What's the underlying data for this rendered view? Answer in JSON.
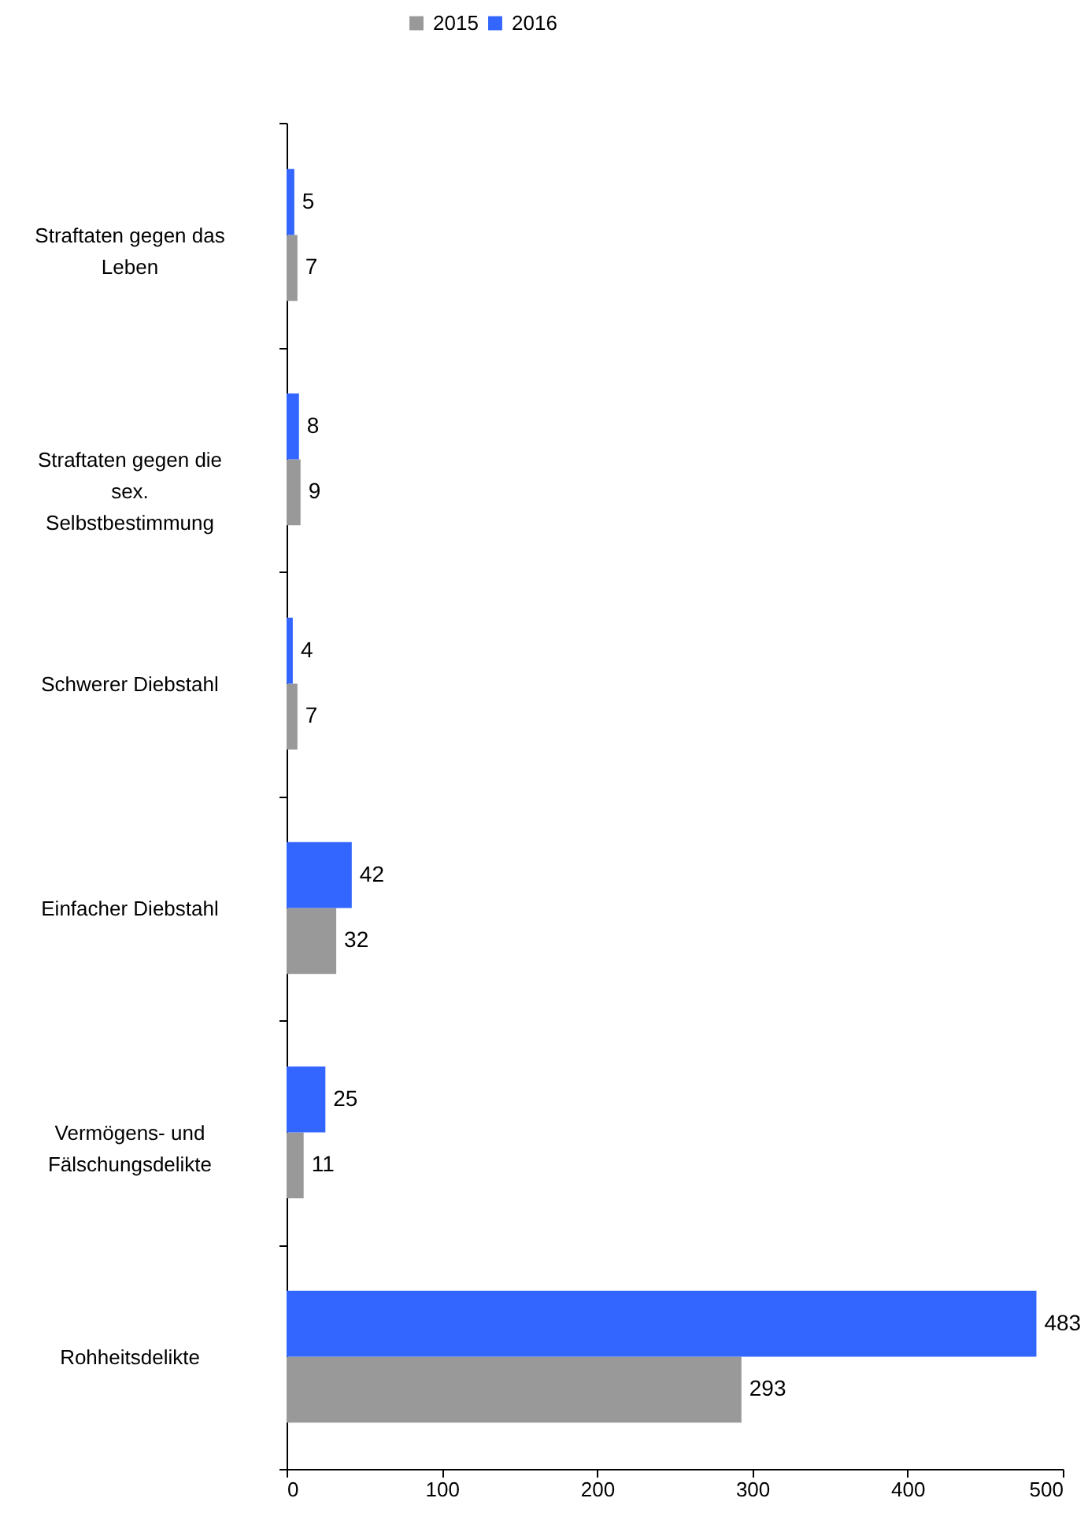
{
  "chart_data": {
    "type": "bar",
    "orientation": "horizontal",
    "categories": [
      "Straftaten gegen das Leben",
      "Straftaten gegen die sex. Selbstbestimmung",
      "Schwerer Diebstahl",
      "Einfacher Diebstahl",
      "Vermögens- und Fälschungsdelikte",
      "Rohheitsdelikte"
    ],
    "series": [
      {
        "name": "2015",
        "color": "#999999",
        "values": [
          7,
          9,
          7,
          32,
          11,
          293
        ]
      },
      {
        "name": "2016",
        "color": "#3366ff",
        "values": [
          5,
          8,
          4,
          42,
          25,
          483
        ]
      }
    ],
    "xlim": [
      0,
      500
    ],
    "xticks": [
      0,
      100,
      200,
      300,
      400,
      500
    ],
    "data_labels": true,
    "legend": "top",
    "grid": false
  }
}
